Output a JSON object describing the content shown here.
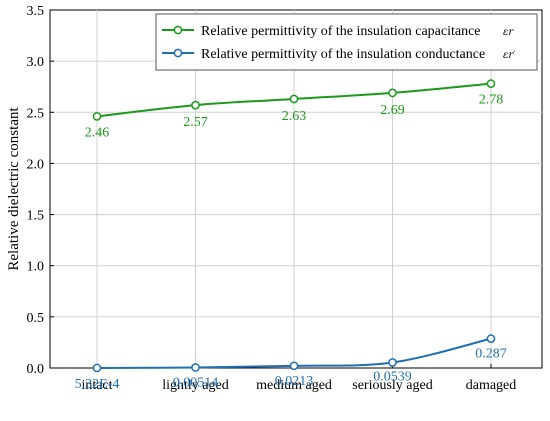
{
  "chart_data": {
    "type": "line",
    "categories": [
      "intact",
      "lightly aged",
      "medium aged",
      "seriously aged",
      "damaged"
    ],
    "ylabel": "Relative dielectric constant",
    "ylim": [
      0.0,
      3.5
    ],
    "yticks": [
      "0.0",
      "0.5",
      "1.0",
      "1.5",
      "2.0",
      "2.5",
      "3.0",
      "3.5"
    ],
    "grid": true,
    "legend_position": "top-right",
    "series": [
      {
        "name": "Relative permittivity of the insulation capacitance",
        "symbol": "εr",
        "color": "#1a9a1a",
        "values": [
          2.46,
          2.57,
          2.63,
          2.69,
          2.78
        ],
        "labels": [
          "2.46",
          "2.57",
          "2.63",
          "2.69",
          "2.78"
        ]
      },
      {
        "name": "Relative permittivity of the insulation conductance",
        "symbol": "εr′",
        "color": "#1f6fb4",
        "values": [
          0.000532,
          0.00514,
          0.0213,
          0.0539,
          0.287
        ],
        "labels": [
          "5.32E-4",
          "0.00514",
          "0.0213",
          "0.0539",
          "0.287"
        ]
      }
    ]
  }
}
